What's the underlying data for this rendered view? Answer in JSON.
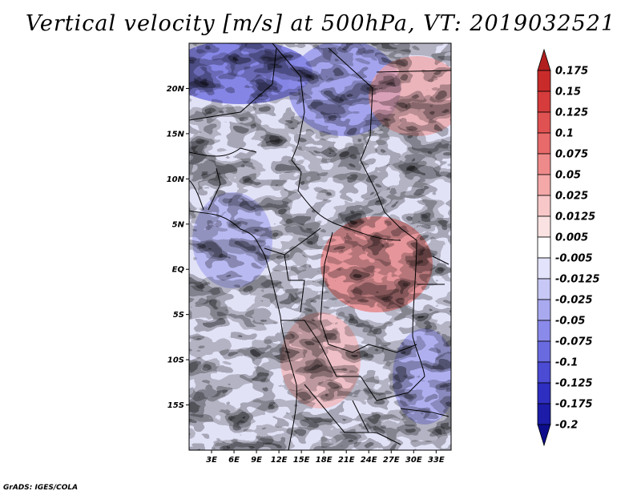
{
  "title": "Vertical velocity [m/s] at 500hPa, VT: 2019032521",
  "credit": "GrADS: IGES/COLA",
  "map": {
    "lat_range": [
      -20,
      25
    ],
    "lon_range": [
      0,
      35
    ],
    "lat_ticks": [
      {
        "value": 20,
        "label": "20N"
      },
      {
        "value": 15,
        "label": "15N"
      },
      {
        "value": 10,
        "label": "10N"
      },
      {
        "value": 5,
        "label": "5N"
      },
      {
        "value": 0,
        "label": "EQ"
      },
      {
        "value": -5,
        "label": "5S"
      },
      {
        "value": -10,
        "label": "10S"
      },
      {
        "value": -15,
        "label": "15S"
      }
    ],
    "lon_ticks": [
      {
        "value": 3,
        "label": "3E"
      },
      {
        "value": 6,
        "label": "6E"
      },
      {
        "value": 9,
        "label": "9E"
      },
      {
        "value": 12,
        "label": "12E"
      },
      {
        "value": 15,
        "label": "15E"
      },
      {
        "value": 18,
        "label": "18E"
      },
      {
        "value": 21,
        "label": "21E"
      },
      {
        "value": 24,
        "label": "24E"
      },
      {
        "value": 27,
        "label": "27E"
      },
      {
        "value": 30,
        "label": "30E"
      },
      {
        "value": 33,
        "label": "33E"
      }
    ]
  },
  "colorbar": {
    "labels": [
      "0.175",
      "0.15",
      "0.125",
      "0.1",
      "0.075",
      "0.05",
      "0.025",
      "0.0125",
      "0.005",
      "-0.005",
      "-0.0125",
      "-0.025",
      "-0.05",
      "-0.075",
      "-0.1",
      "-0.125",
      "-0.175",
      "-0.2"
    ],
    "colors": [
      "#b11f1f",
      "#c92b2b",
      "#d63c3c",
      "#e05252",
      "#e86a6a",
      "#ef8a8a",
      "#f4a8a8",
      "#f8c8c8",
      "#fbe2e2",
      "#ffffff",
      "#e3e3fb",
      "#c8c8f6",
      "#a9a9f0",
      "#8a8aea",
      "#6a6ae0",
      "#4b4bd4",
      "#2e2ec0",
      "#1c1ca8",
      "#0d0d8c"
    ]
  }
}
